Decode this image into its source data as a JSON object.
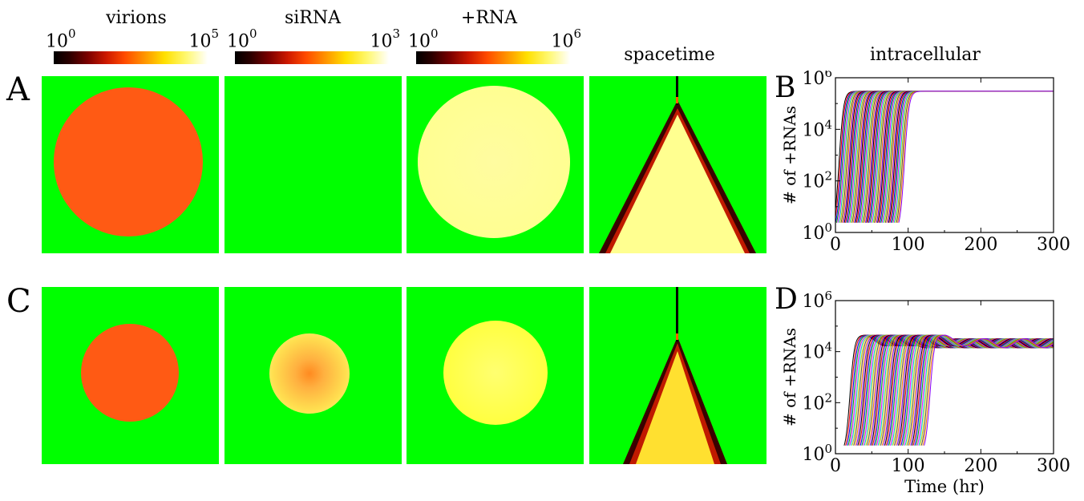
{
  "column_titles": {
    "virions": "virions",
    "sirna": "siRNA",
    "plusrna": "+RNA",
    "spacetime": "spacetime",
    "intracellular": "intracellular"
  },
  "colorbars": [
    {
      "name": "virions",
      "min_base": "10",
      "min_exp": "0",
      "max_base": "10",
      "max_exp": "5"
    },
    {
      "name": "siRNA",
      "min_base": "10",
      "min_exp": "0",
      "max_base": "10",
      "max_exp": "3"
    },
    {
      "name": "+RNA",
      "min_base": "10",
      "min_exp": "0",
      "max_base": "10",
      "max_exp": "6"
    }
  ],
  "row_labels": {
    "A": "A",
    "C": "C"
  },
  "colors": {
    "background": "#00ff00",
    "infected": "#ff5a14",
    "bright": "#ffff90",
    "edge": "#5a0000"
  },
  "chart_data": [
    {
      "type": "line",
      "panel": "B",
      "title": "",
      "xlabel": "",
      "ylabel": "# of +RNAs",
      "xlim": [
        0,
        300
      ],
      "ylim_log10": [
        0,
        6
      ],
      "log_y": true,
      "x_ticks": [
        "0",
        "100",
        "200",
        "300"
      ],
      "y_ticks": [
        {
          "base": "10",
          "exp": "0"
        },
        {
          "base": "10",
          "exp": "2"
        },
        {
          "base": "10",
          "exp": "4"
        },
        {
          "base": "10",
          "exp": "6"
        }
      ],
      "series_description": "many overlapping curves rising between ~5 and ~95 hr and saturating near 3x10^5",
      "plateau": 300000,
      "onset_range_hr": [
        5,
        95
      ]
    },
    {
      "type": "line",
      "panel": "D",
      "title": "",
      "xlabel": "Time (hr)",
      "ylabel": "# of +RNAs",
      "xlim": [
        0,
        300
      ],
      "ylim_log10": [
        0,
        6
      ],
      "log_y": true,
      "x_ticks": [
        "0",
        "100",
        "200",
        "300"
      ],
      "y_ticks": [
        {
          "base": "10",
          "exp": "0"
        },
        {
          "base": "10",
          "exp": "2"
        },
        {
          "base": "10",
          "exp": "4"
        },
        {
          "base": "10",
          "exp": "6"
        }
      ],
      "series_description": "many overlapping curves rising between ~20 and ~130 hr, peaking near 4.5x10^4 then oscillating between 10^4 and 3x10^4",
      "plateau": 45000,
      "onset_range_hr": [
        20,
        130
      ]
    }
  ],
  "panel_letters": {
    "B": "B",
    "D": "D"
  }
}
